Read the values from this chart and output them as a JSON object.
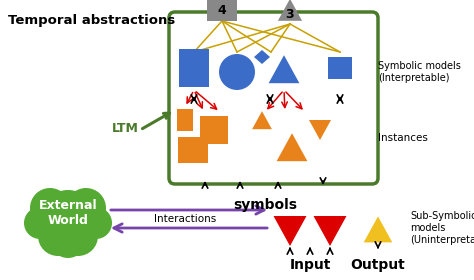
{
  "title": "Temporal abstractions",
  "bg_color": "#ffffff",
  "box_color": "#4a7a2a",
  "blue_color": "#3b6cc7",
  "orange_color": "#e8821a",
  "red_color": "#dd0000",
  "gold_color": "#c8a000",
  "gray_color": "#888888",
  "green_color": "#4a7a2a",
  "purple_color": "#7744aa",
  "cloud_color": "#55aa33",
  "yellow_color": "#f0c020",
  "ltm_label": "LTM",
  "symbols_label": "symbols",
  "input_label": "Input",
  "output_label": "Output",
  "interactions_label": "Interactions",
  "external_world_label": "External\nWorld",
  "symbolic_label": "Symbolic models\n(Interpretable)",
  "instances_label": "Instances",
  "subsymbolic_label": "Sub-Symbolic\nmodels\n(Uninterpretable)",
  "node4_label": "4",
  "node3_label": "3"
}
